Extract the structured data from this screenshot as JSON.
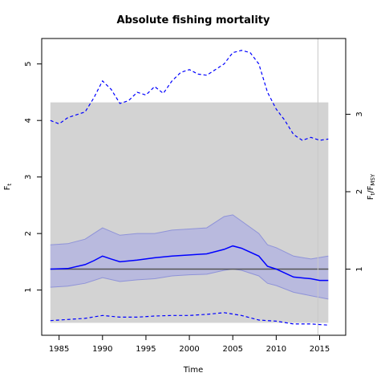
{
  "chart_data": {
    "type": "line",
    "title": "Absolute fishing mortality",
    "xlabel": "Time",
    "ylabel": "F",
    "ylabel_sub": "t",
    "y2label_main": "F",
    "y2label_sub1": "t",
    "y2label_mid": "/F",
    "y2label_sub2": "MSY",
    "xlim": [
      1983,
      2018
    ],
    "ylim": [
      0.2,
      5.45
    ],
    "x_ticks": [
      "1985",
      "1990",
      "1995",
      "2000",
      "2005",
      "2010",
      "2015"
    ],
    "y_ticks": [
      "1",
      "2",
      "3",
      "4",
      "5"
    ],
    "y2_ticks": [
      "1",
      "2",
      "3"
    ],
    "fmsy": 1.37,
    "colors": {
      "line": "#0000ff",
      "ci_fill": "#b9bade",
      "ci_border": "#8f93d8",
      "shade": "#d3d3d3",
      "ref": "#555555",
      "vline": "#c8c8c8"
    },
    "shade_region": {
      "x": [
        1984,
        2016
      ],
      "y": [
        0.42,
        4.32
      ]
    },
    "vline_x": 2014.8,
    "series": [
      {
        "role": "estimate",
        "style": "solid",
        "x": [
          1984,
          1986,
          1988,
          1989,
          1990,
          1991,
          1992,
          1994,
          1996,
          1998,
          2000,
          2002,
          2004,
          2005,
          2006,
          2008,
          2009,
          2010,
          2012,
          2014,
          2015,
          2016
        ],
        "values": [
          1.37,
          1.38,
          1.45,
          1.52,
          1.6,
          1.55,
          1.5,
          1.53,
          1.57,
          1.6,
          1.62,
          1.64,
          1.72,
          1.78,
          1.74,
          1.6,
          1.42,
          1.37,
          1.23,
          1.2,
          1.17,
          1.17
        ]
      },
      {
        "role": "ci_upper",
        "style": "band",
        "x": [
          1984,
          1986,
          1988,
          1989,
          1990,
          1992,
          1994,
          1996,
          1998,
          2000,
          2002,
          2004,
          2005,
          2006,
          2008,
          2009,
          2010,
          2012,
          2014,
          2016
        ],
        "values": [
          1.8,
          1.82,
          1.9,
          2.0,
          2.1,
          1.97,
          2.0,
          2.0,
          2.06,
          2.08,
          2.1,
          2.3,
          2.33,
          2.22,
          2.0,
          1.8,
          1.75,
          1.6,
          1.55,
          1.6
        ]
      },
      {
        "role": "ci_lower",
        "style": "band",
        "x": [
          1984,
          1986,
          1988,
          1990,
          1992,
          1994,
          1996,
          1998,
          2000,
          2002,
          2004,
          2005,
          2006,
          2008,
          2009,
          2010,
          2012,
          2014,
          2016
        ],
        "values": [
          1.05,
          1.07,
          1.12,
          1.22,
          1.15,
          1.18,
          1.2,
          1.25,
          1.27,
          1.28,
          1.35,
          1.37,
          1.35,
          1.25,
          1.12,
          1.08,
          0.96,
          0.9,
          0.84
        ]
      },
      {
        "role": "pred_upper",
        "style": "dashed",
        "x": [
          1984,
          1985,
          1986,
          1987,
          1988,
          1989,
          1990,
          1991,
          1992,
          1993,
          1994,
          1995,
          1996,
          1997,
          1998,
          1999,
          2000,
          2001,
          2002,
          2003,
          2004,
          2005,
          2006,
          2007,
          2008,
          2009,
          2010,
          2011,
          2012,
          2013,
          2014,
          2015,
          2016
        ],
        "values": [
          4.0,
          3.94,
          4.05,
          4.1,
          4.15,
          4.4,
          4.7,
          4.55,
          4.3,
          4.35,
          4.5,
          4.45,
          4.6,
          4.48,
          4.7,
          4.85,
          4.9,
          4.82,
          4.8,
          4.9,
          5.0,
          5.2,
          5.24,
          5.2,
          5.0,
          4.5,
          4.2,
          4.0,
          3.75,
          3.65,
          3.7,
          3.65,
          3.67
        ]
      },
      {
        "role": "pred_lower",
        "style": "dashed",
        "x": [
          1984,
          1986,
          1988,
          1990,
          1992,
          1994,
          1996,
          1998,
          2000,
          2002,
          2004,
          2006,
          2008,
          2010,
          2012,
          2014,
          2016
        ],
        "values": [
          0.46,
          0.48,
          0.5,
          0.55,
          0.52,
          0.52,
          0.54,
          0.55,
          0.55,
          0.57,
          0.6,
          0.55,
          0.47,
          0.45,
          0.4,
          0.4,
          0.38
        ]
      }
    ]
  }
}
